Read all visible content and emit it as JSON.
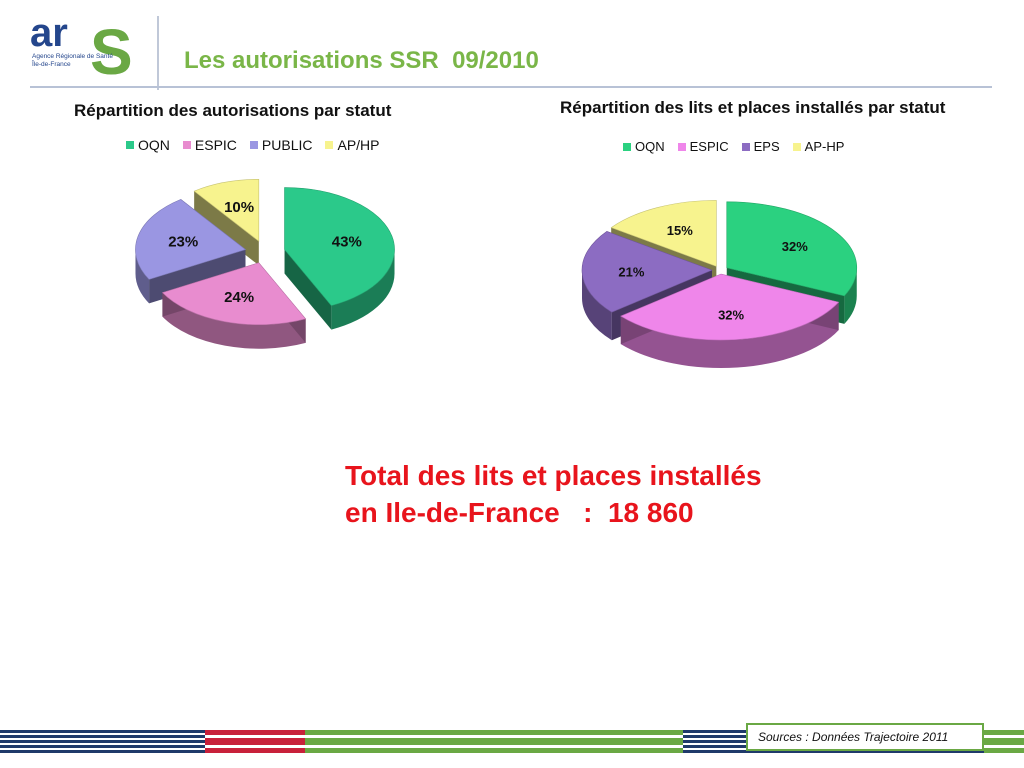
{
  "header": {
    "logo_letters": "ars",
    "logo_subtitle_1": "Agence Régionale de Santé",
    "logo_subtitle_2": "Île-de-France",
    "title": "Les autorisations SSR  09/2010"
  },
  "colors": {
    "title_green": "#7ab648",
    "total_red": "#e8141c",
    "footer_navy": "#1f3a6a",
    "footer_red": "#c8203a",
    "footer_green": "#6aa844"
  },
  "chart_data": [
    {
      "type": "pie",
      "style": "3d-exploded",
      "title": "Répartition des autorisations par statut",
      "legend_position": "top",
      "categories": [
        "OQN",
        "ESPIC",
        "PUBLIC",
        "AP/HP"
      ],
      "values": [
        43,
        24,
        23,
        10
      ],
      "labels": [
        "43%",
        "24%",
        "23%",
        "10%"
      ],
      "colors": [
        "#2bc98a",
        "#e88ccf",
        "#9a96e2",
        "#f7f38e"
      ]
    },
    {
      "type": "pie",
      "style": "3d-exploded",
      "title": "Répartition des lits et places installés par statut",
      "legend_position": "top",
      "categories": [
        "OQN",
        "ESPIC",
        "EPS",
        "AP-HP"
      ],
      "values": [
        32,
        32,
        21,
        15
      ],
      "labels": [
        "32%",
        "32%",
        "21%",
        "15%"
      ],
      "colors": [
        "#2bd180",
        "#ef86ea",
        "#8c6cc2",
        "#f7f38e"
      ]
    }
  ],
  "total": {
    "line1": "Total des lits et places installés",
    "line2": "en Ile-de-France   :  18 860"
  },
  "footer": {
    "source": "Sources :  Données Trajectoire 2011"
  }
}
